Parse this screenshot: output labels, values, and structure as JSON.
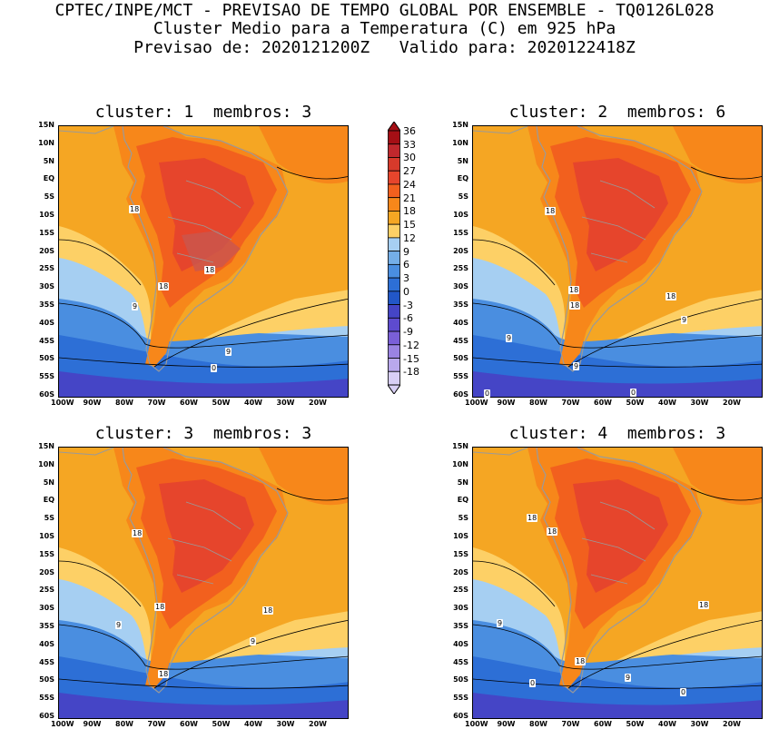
{
  "header": {
    "line1": "CPTEC/INPE/MCT - PREVISAO DE TEMPO GLOBAL POR ENSEMBLE - TQ0126L028",
    "line2": "Cluster Medio para a Temperatura (C) em 925 hPa",
    "line3": "Previsao de: 2020121200Z   Valido para: 2020122418Z"
  },
  "panels": [
    {
      "title": "cluster: 1  membros: 3",
      "labels": [
        "18",
        "18",
        "18",
        "9",
        "9",
        "0"
      ]
    },
    {
      "title": "cluster: 2  membros: 6",
      "labels": [
        "18",
        "18",
        "18",
        "18",
        "9",
        "9",
        "9",
        "0",
        "0"
      ]
    },
    {
      "title": "cluster: 3  membros: 3",
      "labels": [
        "18",
        "18",
        "18",
        "9",
        "9",
        "18"
      ]
    },
    {
      "title": "cluster: 4  membros: 3",
      "labels": [
        "18",
        "18",
        "18",
        "18",
        "9",
        "9",
        "0",
        "0"
      ]
    }
  ],
  "lat_labels": [
    "15N",
    "10N",
    "5N",
    "EQ",
    "5S",
    "10S",
    "15S",
    "20S",
    "25S",
    "30S",
    "35S",
    "40S",
    "45S",
    "50S",
    "55S",
    "60S"
  ],
  "lon_labels": [
    "100W",
    "90W",
    "80W",
    "70W",
    "60W",
    "50W",
    "40W",
    "30W",
    "20W"
  ],
  "colorbar": {
    "labels": [
      "36",
      "33",
      "30",
      "27",
      "24",
      "21",
      "18",
      "15",
      "12",
      "9",
      "6",
      "3",
      "0",
      "-3",
      "-6",
      "-9",
      "-12",
      "-15",
      "-18"
    ],
    "colors": [
      "#a50f15",
      "#c0282d",
      "#d73a2b",
      "#e6452c",
      "#f2601e",
      "#f7871a",
      "#f5a623",
      "#fdd066",
      "#a6cff2",
      "#74aee8",
      "#4a8ee0",
      "#2d6fd6",
      "#2257c8",
      "#4545c6",
      "#5e4bcf",
      "#7a5fd8",
      "#9a83e2",
      "#b9a8ec",
      "#d8cff5"
    ]
  }
}
